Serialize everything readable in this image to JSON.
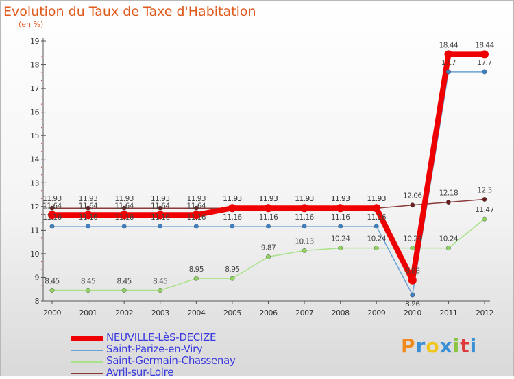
{
  "header": {
    "title": "Evolution du Taux de Taxe d'Habitation",
    "subtitle": "(en %)"
  },
  "chart_data": {
    "type": "line",
    "title": "Evolution du Taux de Taxe d'Habitation",
    "subtitle": "(en %)",
    "xlabel": "",
    "ylabel": "",
    "x": [
      "2000",
      "2001",
      "2002",
      "2003",
      "2004",
      "2005",
      "2006",
      "2007",
      "2008",
      "2009",
      "2010",
      "2011",
      "2012"
    ],
    "ylim": [
      8,
      19
    ],
    "yticks": [
      8,
      9,
      10,
      11,
      12,
      13,
      14,
      15,
      16,
      17,
      18,
      19
    ],
    "grid": false,
    "legend_position": "bottom-left",
    "series": [
      {
        "name": "NEUVILLE-LèS-DECIZE",
        "color": "#ee0000",
        "point_color": "#ee0000",
        "emphasis": true,
        "values": [
          11.64,
          11.64,
          11.64,
          11.64,
          11.64,
          11.93,
          11.93,
          11.93,
          11.93,
          11.93,
          8.88,
          18.44,
          18.44
        ],
        "labels": [
          "11.64",
          "11.64",
          "11.64",
          "11.64",
          "11.64",
          "11.93",
          "11.93",
          "11.93",
          "11.93",
          "11.93",
          "8.88",
          "18.44",
          "18.44"
        ]
      },
      {
        "name": "Saint-Parize-en-Viry",
        "color": "#6aa1d4",
        "point_color": "#3b82c4",
        "values": [
          11.16,
          11.16,
          11.16,
          11.16,
          11.16,
          11.16,
          11.16,
          11.16,
          11.16,
          11.16,
          8.26,
          17.7,
          17.7
        ],
        "labels": [
          "11.16",
          "11.16",
          "11.16",
          "11.16",
          "11.16",
          "11.16",
          "11.16",
          "11.16",
          "11.16",
          "11.16",
          "8.26",
          "17.7",
          "17.7"
        ]
      },
      {
        "name": "Saint-Germain-Chassenay",
        "color": "#a9e28a",
        "point_color": "#8ed45e",
        "values": [
          8.45,
          8.45,
          8.45,
          8.45,
          8.95,
          8.95,
          9.87,
          10.13,
          10.24,
          10.24,
          10.24,
          10.24,
          11.47
        ],
        "labels": [
          "8.45",
          "8.45",
          "8.45",
          "8.45",
          "8.95",
          "8.95",
          "9.87",
          "10.13",
          "10.24",
          "10.24",
          "10.24",
          "10.24",
          "11.47"
        ]
      },
      {
        "name": "Avril-sur-Loire",
        "color": "#8b3a3a",
        "point_color": "#6b1f1f",
        "values": [
          11.93,
          11.93,
          11.93,
          11.93,
          11.93,
          11.93,
          11.93,
          11.93,
          11.93,
          11.93,
          12.06,
          12.18,
          12.3
        ],
        "labels": [
          "11.93",
          "11.93",
          "11.93",
          "11.93",
          "11.93",
          "11.93",
          "11.93",
          "11.93",
          "11.93",
          "11.93",
          "12.06",
          "12.18",
          "12.3"
        ]
      }
    ]
  },
  "legend": {
    "items": [
      {
        "label": "NEUVILLE-LèS-DECIZE",
        "color": "#ee0000"
      },
      {
        "label": "Saint-Parize-en-Viry",
        "color": "#6aa1d4"
      },
      {
        "label": "Saint-Germain-Chassenay",
        "color": "#a9e28a"
      },
      {
        "label": "Avril-sur-Loire",
        "color": "#8b3a3a"
      }
    ]
  },
  "logo": {
    "text": "Proxiti",
    "colors": [
      "#f08a1c",
      "#3a8fd6",
      "#f0c419",
      "#3a8fd6",
      "#8ac43f",
      "#e0383a",
      "#3a8fd6"
    ]
  }
}
